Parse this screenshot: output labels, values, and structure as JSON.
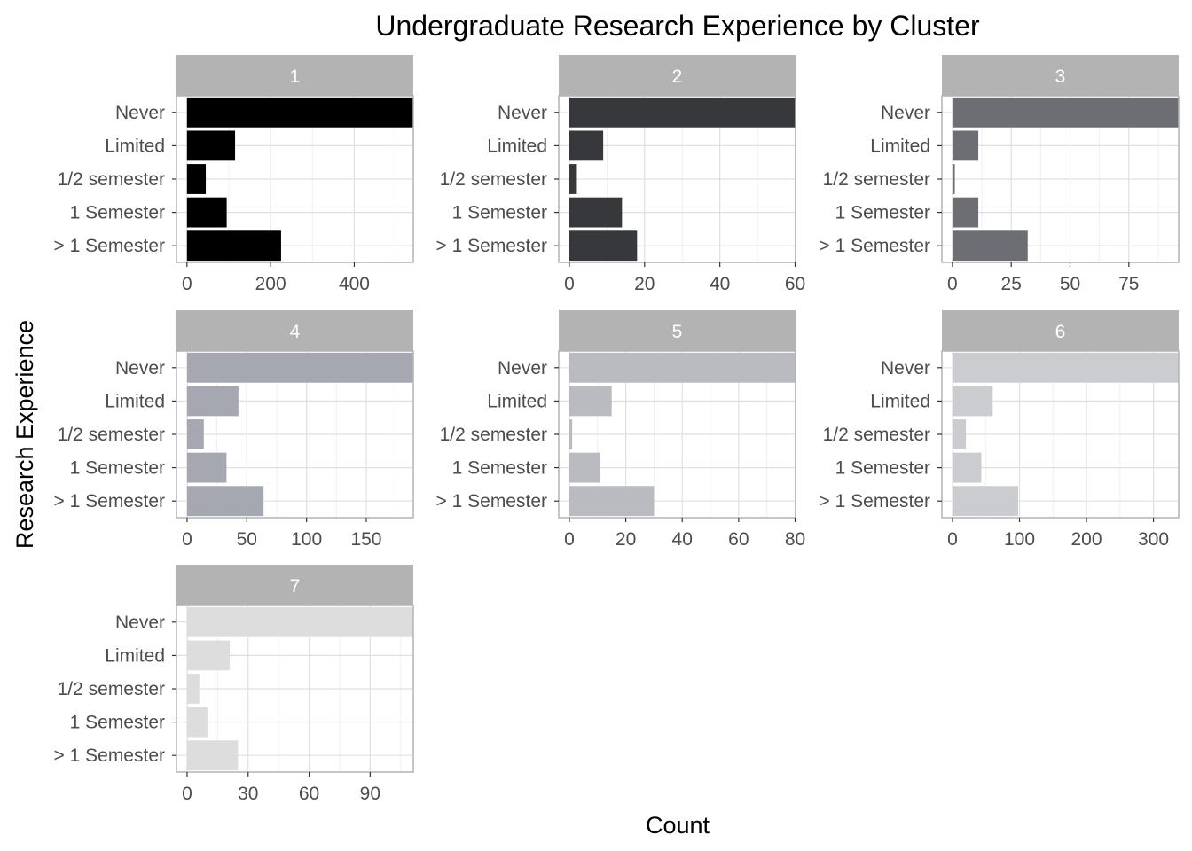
{
  "chart_data": {
    "type": "bar",
    "orientation": "horizontal",
    "title": "Undergraduate Research Experience by Cluster",
    "xlabel": "Count",
    "ylabel": "Research Experience",
    "grid": true,
    "legend": "none",
    "categories": [
      "Never",
      "Limited",
      "1/2 semester",
      "1 Semester",
      "> 1 Semester"
    ],
    "facets": [
      {
        "name": "1",
        "color": "#000000",
        "values": [
          540,
          115,
          45,
          95,
          225
        ],
        "xlim": [
          -24,
          540
        ],
        "ticks": [
          0,
          200,
          400
        ]
      },
      {
        "name": "2",
        "color": "#37383c",
        "values": [
          60,
          9,
          2,
          14,
          18
        ],
        "xlim": [
          -2.7,
          60
        ],
        "ticks": [
          0,
          20,
          40,
          60
        ]
      },
      {
        "name": "3",
        "color": "#6d6e73",
        "values": [
          96,
          11,
          1,
          11,
          32
        ],
        "xlim": [
          -4.3,
          96
        ],
        "ticks": [
          0,
          25,
          50,
          75
        ]
      },
      {
        "name": "4",
        "color": "#a5a8b1",
        "values": [
          189,
          43,
          14,
          33,
          64
        ],
        "xlim": [
          -8.5,
          189
        ],
        "ticks": [
          0,
          50,
          100,
          150
        ]
      },
      {
        "name": "5",
        "color": "#b9bbc1",
        "values": [
          80,
          15,
          1,
          11,
          30
        ],
        "xlim": [
          -3.6,
          80
        ],
        "ticks": [
          0,
          20,
          40,
          60,
          80
        ]
      },
      {
        "name": "6",
        "color": "#cbccd0",
        "values": [
          337,
          60,
          20,
          43,
          98
        ],
        "xlim": [
          -15.2,
          337
        ],
        "ticks": [
          0,
          100,
          200,
          300
        ]
      },
      {
        "name": "7",
        "color": "#dddddd",
        "values": [
          111,
          21,
          6,
          10,
          25
        ],
        "xlim": [
          -5,
          111
        ],
        "ticks": [
          0,
          30,
          60,
          90
        ]
      }
    ]
  }
}
